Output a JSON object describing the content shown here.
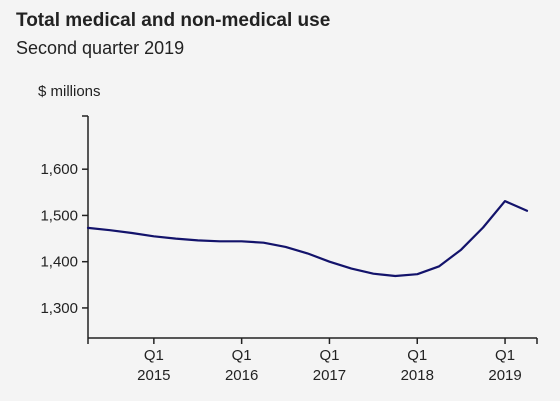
{
  "header": {
    "title": "Total medical and non-medical use",
    "subtitle": "Second quarter 2019"
  },
  "colors": {
    "line": "#13136b",
    "axis": "#222222",
    "background": "#f4f4f4"
  },
  "chart_data": {
    "type": "line",
    "title": "Total medical and non-medical use",
    "subtitle": "Second quarter 2019",
    "ylabel": "$ millions",
    "xlabel": "",
    "ylim": [
      1235,
      1715
    ],
    "yticks": [
      1300,
      1400,
      1500,
      1600
    ],
    "ytick_labels": [
      "1,300",
      "1,400",
      "1,500",
      "1,600"
    ],
    "xlim": [
      "2014 Q2",
      "2019 Q2"
    ],
    "xticks": [
      {
        "x": "2015 Q1",
        "quarter": "Q1",
        "year": "2015"
      },
      {
        "x": "2016 Q1",
        "quarter": "Q1",
        "year": "2016"
      },
      {
        "x": "2017 Q1",
        "quarter": "Q1",
        "year": "2017"
      },
      {
        "x": "2018 Q1",
        "quarter": "Q1",
        "year": "2018"
      },
      {
        "x": "2019 Q1",
        "quarter": "Q1",
        "year": "2019"
      }
    ],
    "grid": false,
    "series": [
      {
        "x": [
          "2014 Q2",
          "2014 Q3",
          "2014 Q4",
          "2015 Q1",
          "2015 Q2",
          "2015 Q3",
          "2015 Q4",
          "2016 Q1",
          "2016 Q2",
          "2016 Q3",
          "2016 Q4",
          "2017 Q1",
          "2017 Q2",
          "2017 Q3",
          "2017 Q4",
          "2018 Q1",
          "2018 Q2",
          "2018 Q3",
          "2018 Q4",
          "2019 Q1",
          "2019 Q2"
        ],
        "values": [
          1473,
          1468,
          1462,
          1455,
          1450,
          1446,
          1444,
          1444,
          1441,
          1432,
          1418,
          1400,
          1385,
          1374,
          1369,
          1373,
          1390,
          1426,
          1474,
          1531,
          1510
        ]
      }
    ]
  }
}
